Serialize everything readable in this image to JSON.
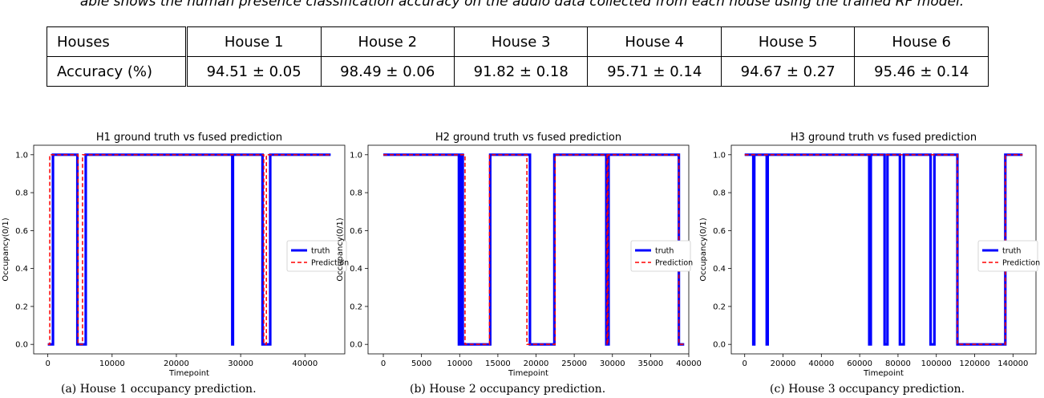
{
  "caption_top": "able shows the human presence classification accuracy on the audio data collected from each house using the trained RF model.",
  "table": {
    "header": [
      "Houses",
      "House 1",
      "House 2",
      "House 3",
      "House 4",
      "House 5",
      "House 6"
    ],
    "row": [
      "Accuracy (%)",
      "94.51 ± 0.05",
      "98.49 ± 0.06",
      "91.82 ± 0.18",
      "95.71 ± 0.14",
      "94.67 ± 0.27",
      "95.46 ± 0.14"
    ]
  },
  "chart_data": [
    {
      "type": "line",
      "title": "H1 ground truth vs fused prediction",
      "xlabel": "Timepoint",
      "ylabel": "Occupancy(0/1)",
      "xlim": [
        -2200,
        46200
      ],
      "ylim": [
        -0.05,
        1.05
      ],
      "xticks": [
        0,
        10000,
        20000,
        30000,
        40000
      ],
      "yticks": [
        0.0,
        0.2,
        0.4,
        0.6,
        0.8,
        1.0
      ],
      "legend_position": "center-right",
      "series": [
        {
          "name": "truth",
          "color": "#0000ff",
          "style": "solid",
          "x": [
            0,
            800,
            800,
            4600,
            4600,
            5900,
            5900,
            28700,
            28700,
            28800,
            28800,
            33400,
            33400,
            34600,
            34600,
            44000
          ],
          "y": [
            0,
            0,
            1,
            1,
            0,
            0,
            1,
            1,
            0,
            0,
            1,
            1,
            0,
            0,
            1,
            1
          ]
        },
        {
          "name": "Prediction",
          "color": "#ff0000",
          "style": "dashed",
          "x": [
            0,
            300,
            300,
            4700,
            4700,
            5400,
            5400,
            33600,
            33600,
            34000,
            34000,
            44000
          ],
          "y": [
            0,
            0,
            1,
            1,
            0,
            0,
            1,
            1,
            0,
            0,
            1,
            1
          ]
        }
      ]
    },
    {
      "type": "line",
      "title": "H2 ground truth vs fused prediction",
      "xlabel": "Timepoint",
      "ylabel": "Occupancy(0/1)",
      "xlim": [
        -2000,
        40000
      ],
      "ylim": [
        -0.05,
        1.05
      ],
      "xticks": [
        0,
        5000,
        10000,
        15000,
        20000,
        25000,
        30000,
        35000,
        40000
      ],
      "yticks": [
        0.0,
        0.2,
        0.4,
        0.6,
        0.8,
        1.0
      ],
      "legend_position": "center-right",
      "series": [
        {
          "name": "truth",
          "color": "#0000ff",
          "style": "solid",
          "x": [
            0,
            9900,
            9900,
            10100,
            10100,
            10400,
            10400,
            14000,
            14000,
            19200,
            19200,
            22400,
            22400,
            29200,
            29200,
            29500,
            29500,
            38700,
            38700,
            39400
          ],
          "y": [
            1,
            1,
            0,
            0,
            1,
            1,
            0,
            0,
            1,
            1,
            0,
            0,
            1,
            1,
            0,
            0,
            1,
            1,
            0,
            0
          ]
        },
        {
          "name": "Prediction",
          "color": "#ff0000",
          "style": "dashed",
          "x": [
            0,
            10700,
            10700,
            13900,
            13900,
            18800,
            18800,
            22500,
            22500,
            29300,
            29300,
            29400,
            29400,
            38700,
            38700,
            39400
          ],
          "y": [
            1,
            1,
            0,
            0,
            1,
            1,
            0,
            0,
            1,
            1,
            0,
            0,
            1,
            1,
            0,
            0
          ]
        }
      ]
    },
    {
      "type": "line",
      "title": "H3 ground truth vs fused prediction",
      "xlabel": "Timepoint",
      "ylabel": "Occupancy(0/1)",
      "xlim": [
        -7000,
        152000
      ],
      "ylim": [
        -0.05,
        1.05
      ],
      "xticks": [
        0,
        20000,
        40000,
        60000,
        80000,
        100000,
        120000,
        140000
      ],
      "yticks": [
        0.0,
        0.2,
        0.4,
        0.6,
        0.8,
        1.0
      ],
      "legend_position": "center-right",
      "series": [
        {
          "name": "truth",
          "color": "#0000ff",
          "style": "solid",
          "x": [
            0,
            4500,
            4500,
            5000,
            5000,
            11500,
            11500,
            12000,
            12000,
            65000,
            65000,
            65800,
            65800,
            73000,
            73000,
            74500,
            74500,
            81000,
            81000,
            83000,
            83000,
            97000,
            97000,
            99000,
            99000,
            111000,
            111000,
            136000,
            136000,
            145000
          ],
          "y": [
            1,
            1,
            0,
            0,
            1,
            1,
            0,
            0,
            1,
            1,
            0,
            0,
            1,
            1,
            0,
            0,
            1,
            1,
            0,
            0,
            1,
            1,
            0,
            0,
            1,
            1,
            0,
            0,
            1,
            1
          ]
        },
        {
          "name": "Prediction",
          "color": "#ff0000",
          "style": "dashed",
          "x": [
            0,
            111000,
            111000,
            136000,
            136000,
            145000
          ],
          "y": [
            1,
            1,
            0,
            0,
            1,
            1
          ]
        }
      ]
    }
  ],
  "subcaptions": [
    "(a) House 1 occupancy prediction.",
    "(b) House 2 occupancy prediction.",
    "(c) House 3 occupancy prediction."
  ]
}
